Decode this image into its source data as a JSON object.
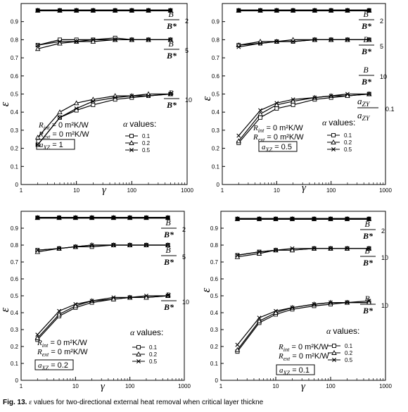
{
  "caption": {
    "fig_label": "Fig. 13.",
    "symbol": "ε",
    "text": " values for two-directional external heat removal when critical layer thickne"
  },
  "chart_data": [
    {
      "type": "line",
      "x_scale": "log",
      "xlim": [
        1,
        1000
      ],
      "ylim": [
        0,
        1
      ],
      "xlabel": "γ",
      "ylabel": "ε",
      "xticks": [
        "1",
        "10",
        "100",
        "1000"
      ],
      "yticks": [
        "0",
        "0.1",
        "0.2",
        "0.3",
        "0.4",
        "0.5",
        "0.6",
        "0.7",
        "0.8",
        "0.9"
      ],
      "x": [
        2,
        5,
        10,
        20,
        50,
        100,
        200,
        500
      ],
      "groups": [
        {
          "ratio_label": "2",
          "series": [
            [
              0.962,
              0.962,
              0.962,
              0.962,
              0.962,
              0.962,
              0.962,
              0.962
            ],
            [
              0.962,
              0.962,
              0.962,
              0.962,
              0.962,
              0.962,
              0.962,
              0.962
            ],
            [
              0.962,
              0.962,
              0.962,
              0.962,
              0.962,
              0.962,
              0.962,
              0.962
            ]
          ]
        },
        {
          "ratio_label": "5",
          "series": [
            [
              0.77,
              0.8,
              0.8,
              0.8,
              0.81,
              0.8,
              0.8,
              0.8
            ],
            [
              0.75,
              0.78,
              0.79,
              0.79,
              0.8,
              0.8,
              0.8,
              0.8
            ],
            [
              0.77,
              0.79,
              0.79,
              0.8,
              0.8,
              0.8,
              0.8,
              0.8
            ]
          ]
        },
        {
          "ratio_label": "10",
          "series": [
            [
              0.22,
              0.37,
              0.41,
              0.44,
              0.47,
              0.48,
              0.49,
              0.5
            ],
            [
              0.26,
              0.4,
              0.45,
              0.47,
              0.49,
              0.49,
              0.5,
              0.5
            ],
            [
              0.22,
              0.37,
              0.42,
              0.46,
              0.48,
              0.49,
              0.49,
              0.5
            ]
          ]
        }
      ],
      "r_int": "R int = 0 m²K/W",
      "r_ext": "R ext = 0 m²K/W",
      "a_label": "a XZ = 1",
      "legend_title": "α values:",
      "legend": [
        "0.1",
        "0.2",
        "0.5"
      ]
    },
    {
      "type": "line",
      "x_scale": "log",
      "xlim": [
        1,
        1000
      ],
      "ylim": [
        0,
        1
      ],
      "xlabel": "γ",
      "ylabel": "ε",
      "xticks": [
        "1",
        "10",
        "100",
        "1000"
      ],
      "yticks": [
        "0",
        "0.1",
        "0.2",
        "0.3",
        "0.4",
        "0.5",
        "0.6",
        "0.7",
        "0.8",
        "0.9"
      ],
      "x": [
        2,
        5,
        10,
        20,
        50,
        100,
        200,
        500
      ],
      "groups": [
        {
          "ratio_label": "2",
          "series": [
            [
              0.962,
              0.962,
              0.962,
              0.962,
              0.962,
              0.962,
              0.962,
              0.962
            ],
            [
              0.962,
              0.962,
              0.962,
              0.962,
              0.962,
              0.962,
              0.962,
              0.962
            ],
            [
              0.962,
              0.962,
              0.962,
              0.962,
              0.962,
              0.962,
              0.962,
              0.962
            ]
          ]
        },
        {
          "ratio_label": "5",
          "series": [
            [
              0.77,
              0.78,
              0.79,
              0.79,
              0.8,
              0.8,
              0.8,
              0.8
            ],
            [
              0.77,
              0.79,
              0.79,
              0.8,
              0.8,
              0.8,
              0.8,
              0.8
            ],
            [
              0.76,
              0.78,
              0.79,
              0.79,
              0.8,
              0.8,
              0.8,
              0.8
            ]
          ]
        },
        {
          "ratio_label": "10",
          "series": [
            [
              0.23,
              0.37,
              0.42,
              0.44,
              0.47,
              0.48,
              0.49,
              0.5
            ],
            [
              0.24,
              0.39,
              0.44,
              0.46,
              0.48,
              0.49,
              0.49,
              0.5
            ],
            [
              0.27,
              0.41,
              0.45,
              0.47,
              0.48,
              0.49,
              0.5,
              0.5
            ]
          ]
        }
      ],
      "extra_label": {
        "ratio_label": "0.1",
        "top": "a ZY",
        "bottom": "a ZY"
      },
      "r_int": "R int = 0 m²K/W",
      "r_ext": "R ext = 0 m²K/W",
      "a_label": "a XZ = 0.5",
      "legend_title": "α values:",
      "legend": [
        "0.1",
        "0.2",
        "0.5"
      ]
    },
    {
      "type": "line",
      "x_scale": "log",
      "xlim": [
        1,
        1000
      ],
      "ylim": [
        0,
        1
      ],
      "xlabel": "γ",
      "ylabel": "ε",
      "xticks": [
        "1",
        "10",
        "100",
        "1000"
      ],
      "yticks": [
        "0",
        "0.1",
        "0.2",
        "0.3",
        "0.4",
        "0.5",
        "0.6",
        "0.7",
        "0.8",
        "0.9"
      ],
      "x": [
        2,
        5,
        10,
        20,
        50,
        100,
        200,
        500
      ],
      "groups": [
        {
          "ratio_label": "2",
          "series": [
            [
              0.962,
              0.962,
              0.962,
              0.962,
              0.962,
              0.962,
              0.962,
              0.962
            ],
            [
              0.962,
              0.962,
              0.962,
              0.962,
              0.962,
              0.962,
              0.962,
              0.962
            ],
            [
              0.962,
              0.962,
              0.962,
              0.962,
              0.962,
              0.962,
              0.962,
              0.962
            ]
          ]
        },
        {
          "ratio_label": "5",
          "series": [
            [
              0.77,
              0.78,
              0.79,
              0.79,
              0.8,
              0.8,
              0.8,
              0.8
            ],
            [
              0.76,
              0.78,
              0.79,
              0.8,
              0.8,
              0.8,
              0.8,
              0.8
            ],
            [
              0.77,
              0.78,
              0.79,
              0.8,
              0.8,
              0.8,
              0.8,
              0.8
            ]
          ]
        },
        {
          "ratio_label": "10",
          "series": [
            [
              0.24,
              0.38,
              0.43,
              0.46,
              0.48,
              0.49,
              0.49,
              0.5
            ],
            [
              0.25,
              0.39,
              0.44,
              0.47,
              0.48,
              0.49,
              0.49,
              0.5
            ],
            [
              0.27,
              0.41,
              0.45,
              0.47,
              0.49,
              0.49,
              0.5,
              0.5
            ]
          ]
        }
      ],
      "r_int": "R int = 0 m²K/W",
      "r_ext": "R ext = 0 m²K/W",
      "a_label": "a XZ = 0.2",
      "legend_title": "α values:",
      "legend": [
        "0.1",
        "0.2",
        "0.5"
      ]
    },
    {
      "type": "line",
      "x_scale": "log",
      "xlim": [
        1,
        1000
      ],
      "ylim": [
        0,
        1
      ],
      "xlabel": "γ",
      "ylabel": "ε",
      "xticks": [
        "1",
        "10",
        "100",
        "1000"
      ],
      "yticks": [
        "0",
        "0.1",
        "0.2",
        "0.3",
        "0.4",
        "0.5",
        "0.6",
        "0.7",
        "0.8",
        "0.9"
      ],
      "x": [
        2,
        5,
        10,
        20,
        50,
        100,
        200,
        500
      ],
      "groups": [
        {
          "ratio_label": "2",
          "series": [
            [
              0.955,
              0.955,
              0.955,
              0.955,
              0.955,
              0.955,
              0.955,
              0.955
            ],
            [
              0.955,
              0.955,
              0.955,
              0.955,
              0.955,
              0.955,
              0.955,
              0.955
            ],
            [
              0.955,
              0.955,
              0.955,
              0.955,
              0.955,
              0.955,
              0.955,
              0.955
            ]
          ]
        },
        {
          "ratio_label": "10",
          "series": [
            [
              0.74,
              0.76,
              0.77,
              0.77,
              0.78,
              0.78,
              0.78,
              0.78
            ],
            [
              0.73,
              0.75,
              0.77,
              0.77,
              0.78,
              0.78,
              0.78,
              0.78
            ],
            [
              0.74,
              0.76,
              0.77,
              0.78,
              0.78,
              0.78,
              0.78,
              0.78
            ]
          ]
        },
        {
          "ratio_label": "10",
          "series": [
            [
              0.17,
              0.34,
              0.39,
              0.42,
              0.44,
              0.45,
              0.46,
              0.46
            ],
            [
              0.18,
              0.35,
              0.4,
              0.43,
              0.45,
              0.46,
              0.46,
              0.46
            ],
            [
              0.21,
              0.37,
              0.41,
              0.43,
              0.45,
              0.46,
              0.46,
              0.47
            ]
          ]
        }
      ],
      "r_int": "R int = 0 m²K/W",
      "r_ext": "R ext = 0 m²K/W",
      "a_label": "a XZ = 0.1",
      "legend_title": "α values:",
      "legend": [
        "0.1",
        "0.2",
        "0.5"
      ]
    }
  ]
}
